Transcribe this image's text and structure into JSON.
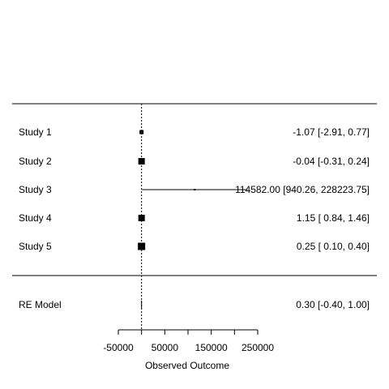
{
  "chart_data": {
    "type": "forest",
    "xlabel": "Observed Outcome",
    "xlim": [
      -50000,
      250000
    ],
    "xticks": [
      -50000,
      0,
      50000,
      100000,
      150000,
      200000,
      250000
    ],
    "xtick_labels": [
      "-50000",
      "",
      "50000",
      "",
      "150000",
      "",
      "250000"
    ],
    "reference_line": 0,
    "studies": [
      {
        "label": "Study 1",
        "estimate": -1.07,
        "ci_lower": -2.91,
        "ci_upper": 0.77,
        "text": "-1.07 [-2.91,     0.77]"
      },
      {
        "label": "Study 2",
        "estimate": -0.04,
        "ci_lower": -0.31,
        "ci_upper": 0.24,
        "text": "-0.04 [-0.31,     0.24]"
      },
      {
        "label": "Study 3",
        "estimate": 114582.0,
        "ci_lower": 940.26,
        "ci_upper": 228223.75,
        "text": "114582.00 [940.26, 228223.75]"
      },
      {
        "label": "Study 4",
        "estimate": 1.15,
        "ci_lower": 0.84,
        "ci_upper": 1.46,
        "text": "1.15 [ 0.84,     1.46]"
      },
      {
        "label": "Study 5",
        "estimate": 0.25,
        "ci_lower": 0.1,
        "ci_upper": 0.4,
        "text": "0.25 [ 0.10,     0.40]"
      }
    ],
    "summary": {
      "label": "RE Model",
      "estimate": 0.3,
      "ci_lower": -0.4,
      "ci_upper": 1.0,
      "text": "0.30 [-0.40,     1.00]"
    }
  }
}
